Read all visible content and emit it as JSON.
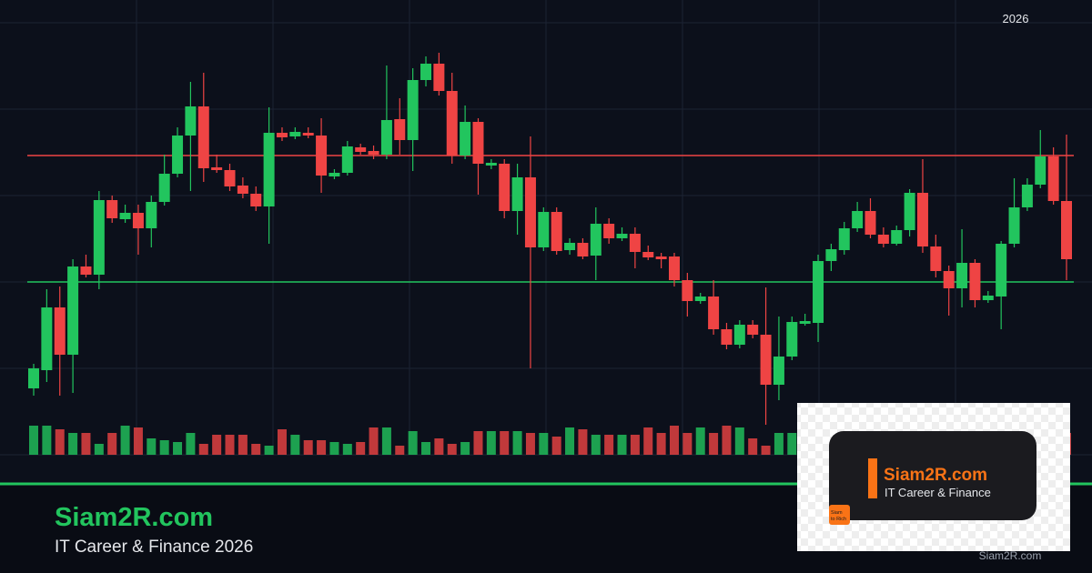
{
  "header": {
    "year": "2026"
  },
  "chart_data": {
    "type": "candlestick",
    "ohlc": [
      [
        93,
        120,
        85,
        115
      ],
      [
        113,
        202,
        100,
        182
      ],
      [
        182,
        205,
        85,
        130
      ],
      [
        130,
        235,
        88,
        227
      ],
      [
        227,
        240,
        215,
        218
      ],
      [
        218,
        310,
        202,
        300
      ],
      [
        300,
        305,
        275,
        280
      ],
      [
        279,
        295,
        275,
        286
      ],
      [
        286,
        295,
        240,
        269
      ],
      [
        269,
        305,
        248,
        298
      ],
      [
        298,
        350,
        294,
        329
      ],
      [
        329,
        380,
        325,
        371
      ],
      [
        371,
        430,
        310,
        403
      ],
      [
        403,
        440,
        320,
        335
      ],
      [
        336,
        350,
        330,
        333
      ],
      [
        333,
        340,
        310,
        315
      ],
      [
        316,
        325,
        302,
        307
      ],
      [
        307,
        315,
        288,
        293
      ],
      [
        293,
        402,
        252,
        374
      ],
      [
        374,
        380,
        365,
        369
      ],
      [
        370,
        380,
        367,
        375
      ],
      [
        374,
        380,
        368,
        371
      ],
      [
        371,
        390,
        308,
        327
      ],
      [
        326,
        334,
        323,
        330
      ],
      [
        330,
        365,
        327,
        359
      ],
      [
        358,
        362,
        350,
        353
      ],
      [
        354,
        360,
        345,
        350
      ],
      [
        350,
        448,
        345,
        388
      ],
      [
        389,
        412,
        350,
        366
      ],
      [
        366,
        445,
        332,
        432
      ],
      [
        432,
        458,
        425,
        450
      ],
      [
        450,
        462,
        415,
        420
      ],
      [
        420,
        440,
        340,
        349
      ],
      [
        349,
        404,
        345,
        386
      ],
      [
        386,
        390,
        306,
        340
      ],
      [
        338,
        345,
        334,
        341
      ],
      [
        340,
        345,
        280,
        288
      ],
      [
        288,
        340,
        262,
        325
      ],
      [
        325,
        370,
        115,
        248
      ],
      [
        248,
        292,
        244,
        287
      ],
      [
        287,
        292,
        240,
        244
      ],
      [
        245,
        258,
        240,
        253
      ],
      [
        253,
        258,
        235,
        238
      ],
      [
        239,
        292,
        212,
        274
      ],
      [
        274,
        280,
        252,
        258
      ],
      [
        258,
        270,
        255,
        263
      ],
      [
        263,
        270,
        225,
        243
      ],
      [
        243,
        250,
        234,
        237
      ],
      [
        238,
        242,
        225,
        235
      ],
      [
        238,
        242,
        205,
        212
      ],
      [
        212,
        220,
        172,
        189
      ],
      [
        189,
        198,
        186,
        194
      ],
      [
        194,
        212,
        152,
        158
      ],
      [
        158,
        165,
        136,
        141
      ],
      [
        141,
        168,
        137,
        163
      ],
      [
        163,
        168,
        148,
        152
      ],
      [
        152,
        204,
        53,
        97
      ],
      [
        97,
        172,
        80,
        128
      ],
      [
        128,
        172,
        124,
        166
      ],
      [
        164,
        175,
        162,
        167
      ],
      [
        165,
        240,
        144,
        233
      ],
      [
        233,
        252,
        222,
        246
      ],
      [
        245,
        276,
        240,
        269
      ],
      [
        269,
        298,
        265,
        288
      ],
      [
        288,
        302,
        258,
        262
      ],
      [
        262,
        270,
        248,
        252
      ],
      [
        252,
        272,
        250,
        267
      ],
      [
        267,
        312,
        260,
        308
      ],
      [
        308,
        345,
        242,
        249
      ],
      [
        249,
        262,
        215,
        222
      ],
      [
        222,
        228,
        173,
        203
      ],
      [
        203,
        268,
        182,
        231
      ],
      [
        231,
        235,
        182,
        190
      ],
      [
        190,
        200,
        187,
        195
      ],
      [
        194,
        255,
        158,
        252
      ],
      [
        252,
        324,
        248,
        292
      ],
      [
        292,
        324,
        288,
        317
      ],
      [
        317,
        377,
        313,
        348
      ],
      [
        348,
        358,
        295,
        299
      ],
      [
        299,
        372,
        212,
        235
      ]
    ],
    "volume": [
      32,
      32,
      28,
      24,
      24,
      12,
      24,
      32,
      30,
      18,
      16,
      14,
      24,
      12,
      22,
      22,
      22,
      12,
      10,
      28,
      22,
      16,
      16,
      14,
      12,
      14,
      30,
      30,
      10,
      26,
      14,
      18,
      12,
      14,
      26,
      26,
      26,
      26,
      24,
      24,
      20,
      30,
      28,
      22,
      22,
      22,
      22,
      30,
      24,
      32,
      24,
      30,
      24,
      32,
      30,
      18,
      10,
      24,
      24,
      12,
      12,
      14,
      30,
      30,
      26,
      26,
      24,
      24,
      20,
      18,
      22,
      22,
      24,
      20,
      24,
      24,
      22,
      24,
      24,
      24
    ],
    "ylim": [
      0,
      500
    ],
    "volume_ylim": [
      0,
      40
    ],
    "up_color": "#22c55e",
    "down_color": "#ef4444",
    "levels": [
      {
        "value": 349,
        "color": "#ef4444"
      },
      {
        "value": 210,
        "color": "#22c55e"
      }
    ]
  },
  "footer": {
    "brand": "Siam2R.com",
    "tagline": "IT Career & Finance 2026"
  },
  "logo": {
    "brand": "Siam2R.com",
    "tagline": "IT Career & Finance",
    "badge": [
      "Siam",
      "to Rich"
    ]
  },
  "watermark": "Siam2R.com"
}
